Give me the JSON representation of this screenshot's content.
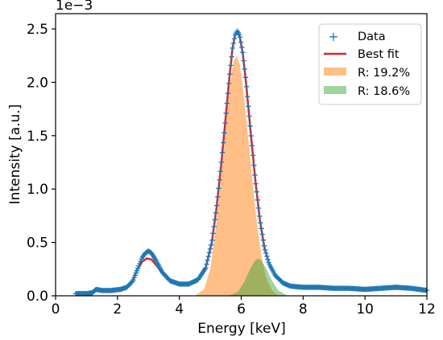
{
  "chart_data": {
    "type": "line",
    "xlabel": "Energy [keV]",
    "ylabel": "Intensity [a.u.]",
    "y_scale_label": "1e−3",
    "xlim": [
      0,
      12
    ],
    "ylim": [
      0,
      2.6
    ],
    "x_ticks": [
      0,
      2,
      4,
      6,
      8,
      10,
      12
    ],
    "x_tick_labels": [
      "0",
      "2",
      "4",
      "6",
      "8",
      "10",
      "12"
    ],
    "y_ticks": [
      0,
      0.5,
      1.0,
      1.5,
      2.0,
      2.5
    ],
    "y_tick_labels": [
      "0.0",
      "0.5",
      "1.0",
      "1.5",
      "2.0",
      "2.5"
    ],
    "grid": false,
    "legend_position": "top-right",
    "series": [
      {
        "name": "Data",
        "kind": "scatter",
        "marker": "+",
        "color": "#1f77b4",
        "points": [
          [
            0.65,
            0.02
          ],
          [
            1.0,
            0.02
          ],
          [
            1.2,
            0.03
          ],
          [
            1.3,
            0.06
          ],
          [
            1.5,
            0.05
          ],
          [
            1.8,
            0.05
          ],
          [
            2.1,
            0.06
          ],
          [
            2.3,
            0.08
          ],
          [
            2.5,
            0.14
          ],
          [
            2.65,
            0.25
          ],
          [
            2.8,
            0.36
          ],
          [
            2.9,
            0.4
          ],
          [
            3.0,
            0.42
          ],
          [
            3.1,
            0.4
          ],
          [
            3.25,
            0.33
          ],
          [
            3.45,
            0.22
          ],
          [
            3.7,
            0.14
          ],
          [
            4.0,
            0.11
          ],
          [
            4.3,
            0.11
          ],
          [
            4.6,
            0.15
          ],
          [
            4.85,
            0.26
          ],
          [
            5.05,
            0.5
          ],
          [
            5.2,
            0.82
          ],
          [
            5.35,
            1.22
          ],
          [
            5.5,
            1.68
          ],
          [
            5.62,
            2.05
          ],
          [
            5.72,
            2.32
          ],
          [
            5.8,
            2.44
          ],
          [
            5.87,
            2.48
          ],
          [
            5.95,
            2.44
          ],
          [
            6.05,
            2.28
          ],
          [
            6.15,
            2.02
          ],
          [
            6.3,
            1.56
          ],
          [
            6.45,
            1.1
          ],
          [
            6.6,
            0.72
          ],
          [
            6.75,
            0.45
          ],
          [
            6.9,
            0.3
          ],
          [
            7.1,
            0.19
          ],
          [
            7.35,
            0.12
          ],
          [
            7.6,
            0.09
          ],
          [
            8.0,
            0.08
          ],
          [
            8.5,
            0.08
          ],
          [
            9.0,
            0.07
          ],
          [
            9.5,
            0.07
          ],
          [
            10.0,
            0.06
          ],
          [
            10.5,
            0.07
          ],
          [
            11.0,
            0.08
          ],
          [
            11.5,
            0.07
          ],
          [
            12.0,
            0.05
          ]
        ]
      },
      {
        "name": "Best fit",
        "kind": "line",
        "color": "#d62728",
        "points": [
          [
            2.3,
            0.08
          ],
          [
            2.5,
            0.15
          ],
          [
            2.65,
            0.25
          ],
          [
            2.8,
            0.32
          ],
          [
            2.95,
            0.35
          ],
          [
            3.1,
            0.34
          ],
          [
            3.3,
            0.27
          ],
          [
            3.5,
            0.19
          ],
          [
            3.75,
            0.13
          ],
          [
            4.0,
            0.11
          ],
          [
            4.3,
            0.11
          ],
          [
            4.6,
            0.15
          ],
          [
            4.85,
            0.26
          ],
          [
            5.05,
            0.5
          ],
          [
            5.2,
            0.82
          ],
          [
            5.35,
            1.22
          ],
          [
            5.5,
            1.68
          ],
          [
            5.62,
            2.05
          ],
          [
            5.72,
            2.32
          ],
          [
            5.8,
            2.44
          ],
          [
            5.87,
            2.47
          ],
          [
            5.95,
            2.43
          ],
          [
            6.05,
            2.27
          ],
          [
            6.15,
            2.01
          ],
          [
            6.3,
            1.55
          ],
          [
            6.45,
            1.1
          ],
          [
            6.6,
            0.72
          ],
          [
            6.75,
            0.45
          ],
          [
            6.9,
            0.3
          ],
          [
            7.1,
            0.19
          ],
          [
            7.35,
            0.12
          ],
          [
            7.6,
            0.09
          ],
          [
            7.8,
            0.08
          ]
        ]
      },
      {
        "name": "R: 19.2%",
        "kind": "area",
        "color": "#ff7f0e",
        "points": [
          [
            4.5,
            0.0
          ],
          [
            4.8,
            0.06
          ],
          [
            5.0,
            0.25
          ],
          [
            5.2,
            0.68
          ],
          [
            5.35,
            1.1
          ],
          [
            5.5,
            1.58
          ],
          [
            5.65,
            2.0
          ],
          [
            5.75,
            2.19
          ],
          [
            5.85,
            2.25
          ],
          [
            5.95,
            2.17
          ],
          [
            6.05,
            1.96
          ],
          [
            6.2,
            1.55
          ],
          [
            6.35,
            1.1
          ],
          [
            6.5,
            0.7
          ],
          [
            6.65,
            0.38
          ],
          [
            6.8,
            0.17
          ],
          [
            7.0,
            0.05
          ],
          [
            7.2,
            0.0
          ]
        ]
      },
      {
        "name": "R: 18.6%",
        "kind": "area",
        "color": "#2ca02c",
        "points": [
          [
            5.6,
            0.0
          ],
          [
            5.9,
            0.04
          ],
          [
            6.1,
            0.13
          ],
          [
            6.3,
            0.26
          ],
          [
            6.45,
            0.33
          ],
          [
            6.55,
            0.35
          ],
          [
            6.65,
            0.33
          ],
          [
            6.8,
            0.26
          ],
          [
            7.0,
            0.14
          ],
          [
            7.2,
            0.05
          ],
          [
            7.5,
            0.0
          ]
        ]
      }
    ]
  }
}
